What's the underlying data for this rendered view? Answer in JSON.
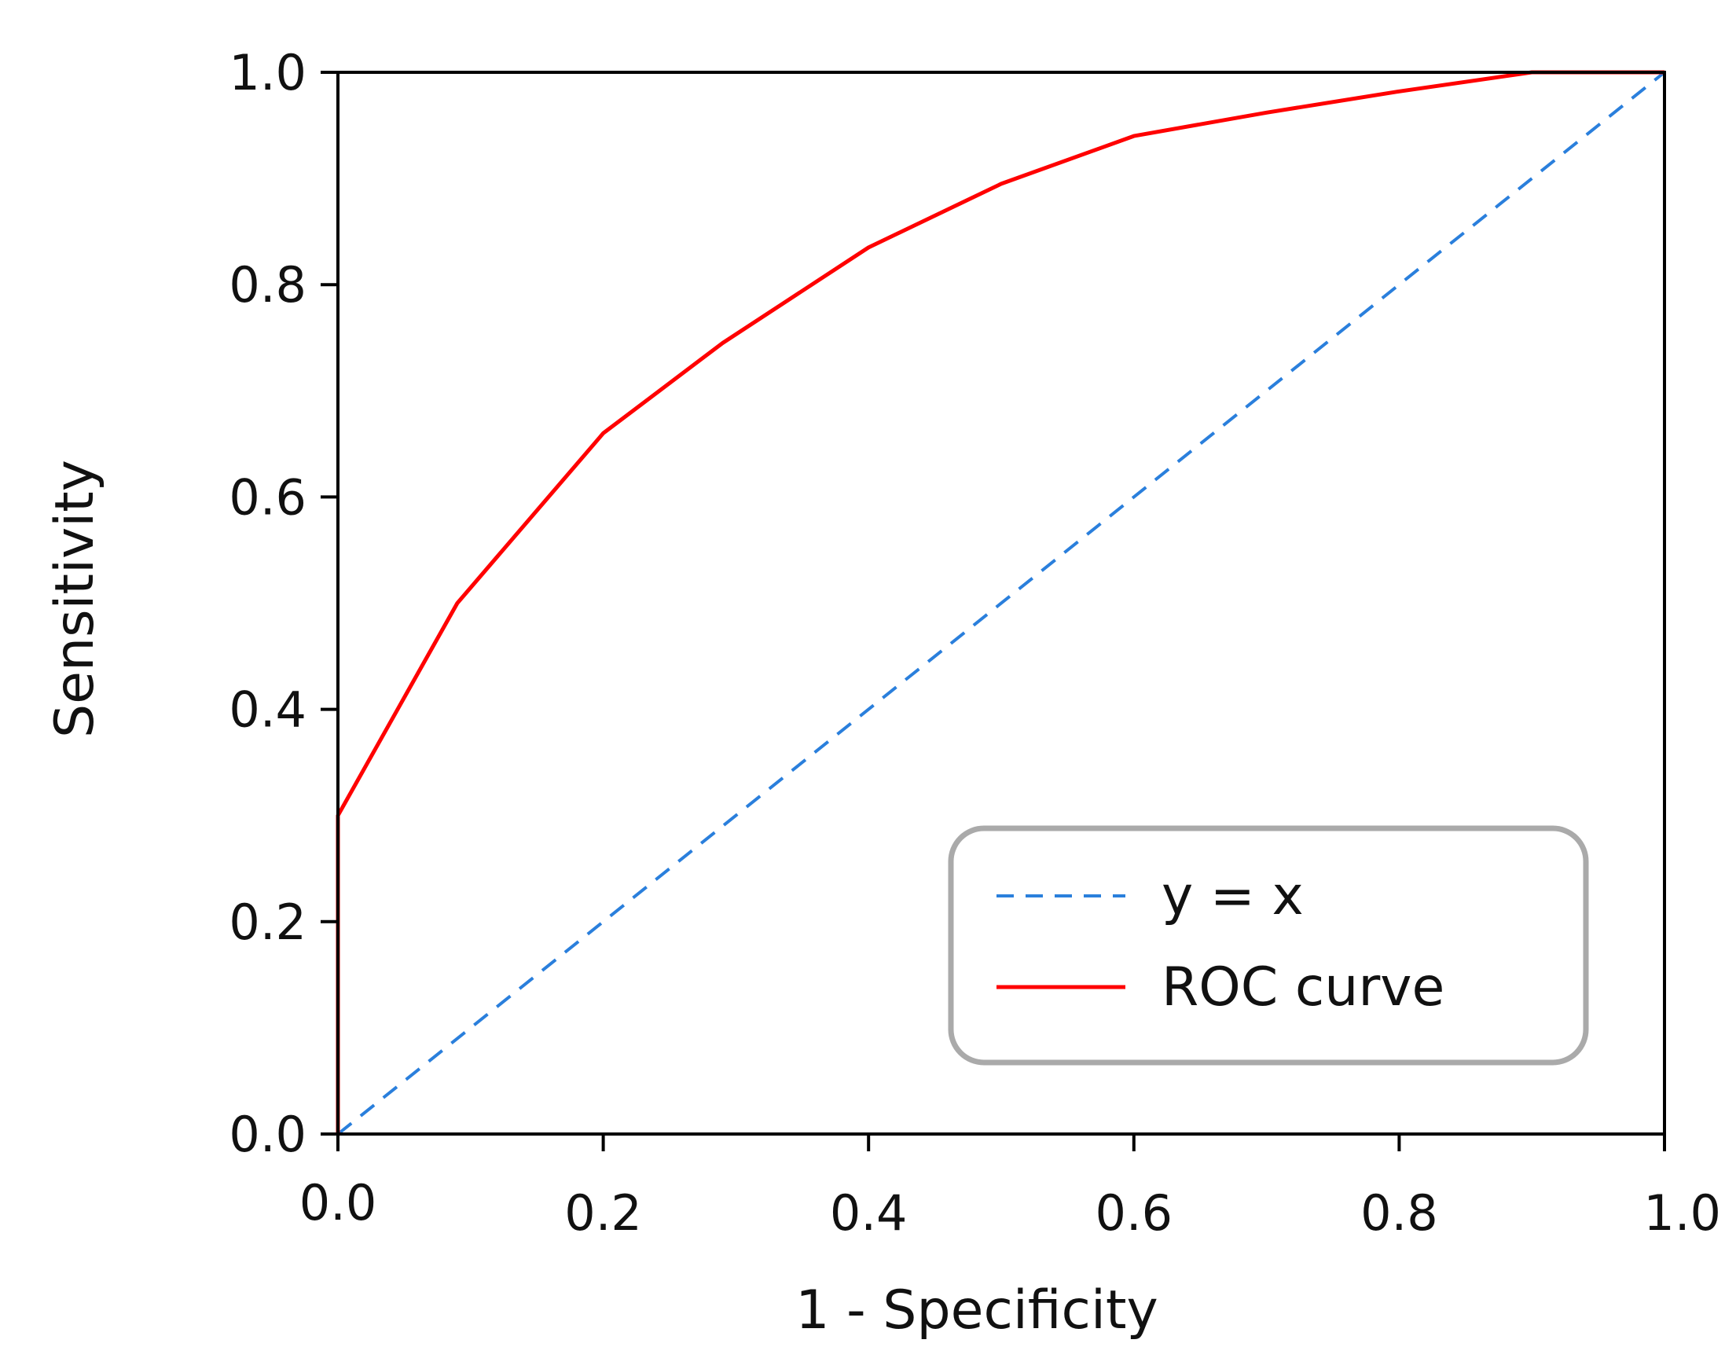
{
  "chart_data": {
    "type": "line",
    "title": "",
    "xlabel": "1 - Specificity",
    "ylabel": "Sensitivity",
    "xlim": [
      0,
      1
    ],
    "ylim": [
      0,
      1
    ],
    "x_ticks": [
      "0.0",
      "0.2",
      "0.4",
      "0.6",
      "0.8",
      "1.0"
    ],
    "y_ticks": [
      "0.0",
      "0.2",
      "0.4",
      "0.6",
      "0.8",
      "1.0"
    ],
    "grid": false,
    "legend_position": "lower-right",
    "series": [
      {
        "name": "y = x",
        "style": "dashed",
        "color": "#2a7fdc",
        "x": [
          0,
          1
        ],
        "y": [
          0,
          1
        ]
      },
      {
        "name": "ROC curve",
        "style": "solid",
        "color": "#ff0000",
        "x": [
          0,
          0,
          0.09,
          0.2,
          0.29,
          0.4,
          0.5,
          0.6,
          0.7,
          0.8,
          0.9,
          1.0
        ],
        "y": [
          0,
          0.3,
          0.5,
          0.66,
          0.745,
          0.835,
          0.895,
          0.94,
          0.962,
          0.982,
          1.0,
          1.0
        ]
      }
    ]
  }
}
